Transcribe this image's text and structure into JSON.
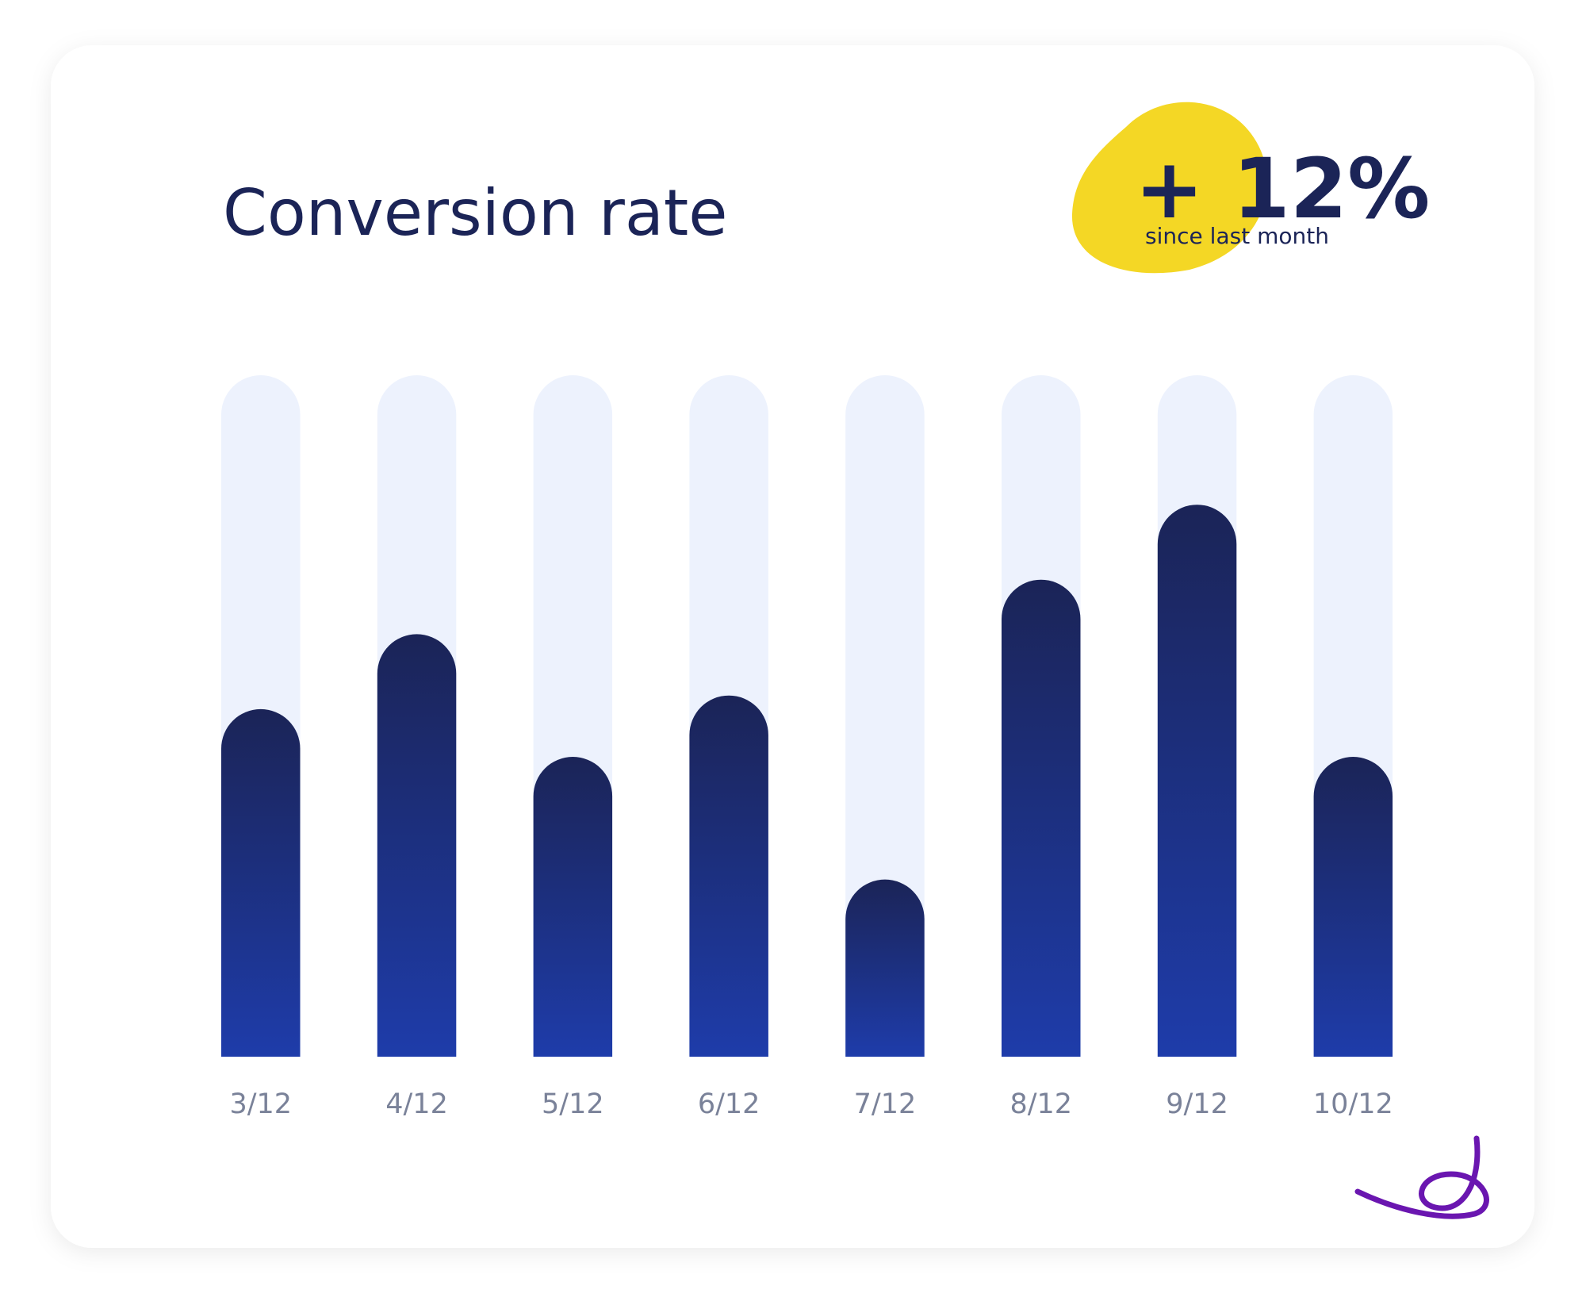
{
  "chart_data": {
    "type": "bar",
    "title": "Conversion rate",
    "badge": {
      "value_text": "+ 12%",
      "caption": "since last month"
    },
    "categories": [
      "3/12",
      "4/12",
      "5/12",
      "6/12",
      "7/12",
      "8/12",
      "9/12",
      "10/12"
    ],
    "values": [
      51,
      62,
      44,
      53,
      26,
      70,
      81,
      44
    ],
    "ylim": [
      0,
      100
    ],
    "color": "#1e3caa",
    "track_color": "#edf2fd"
  }
}
